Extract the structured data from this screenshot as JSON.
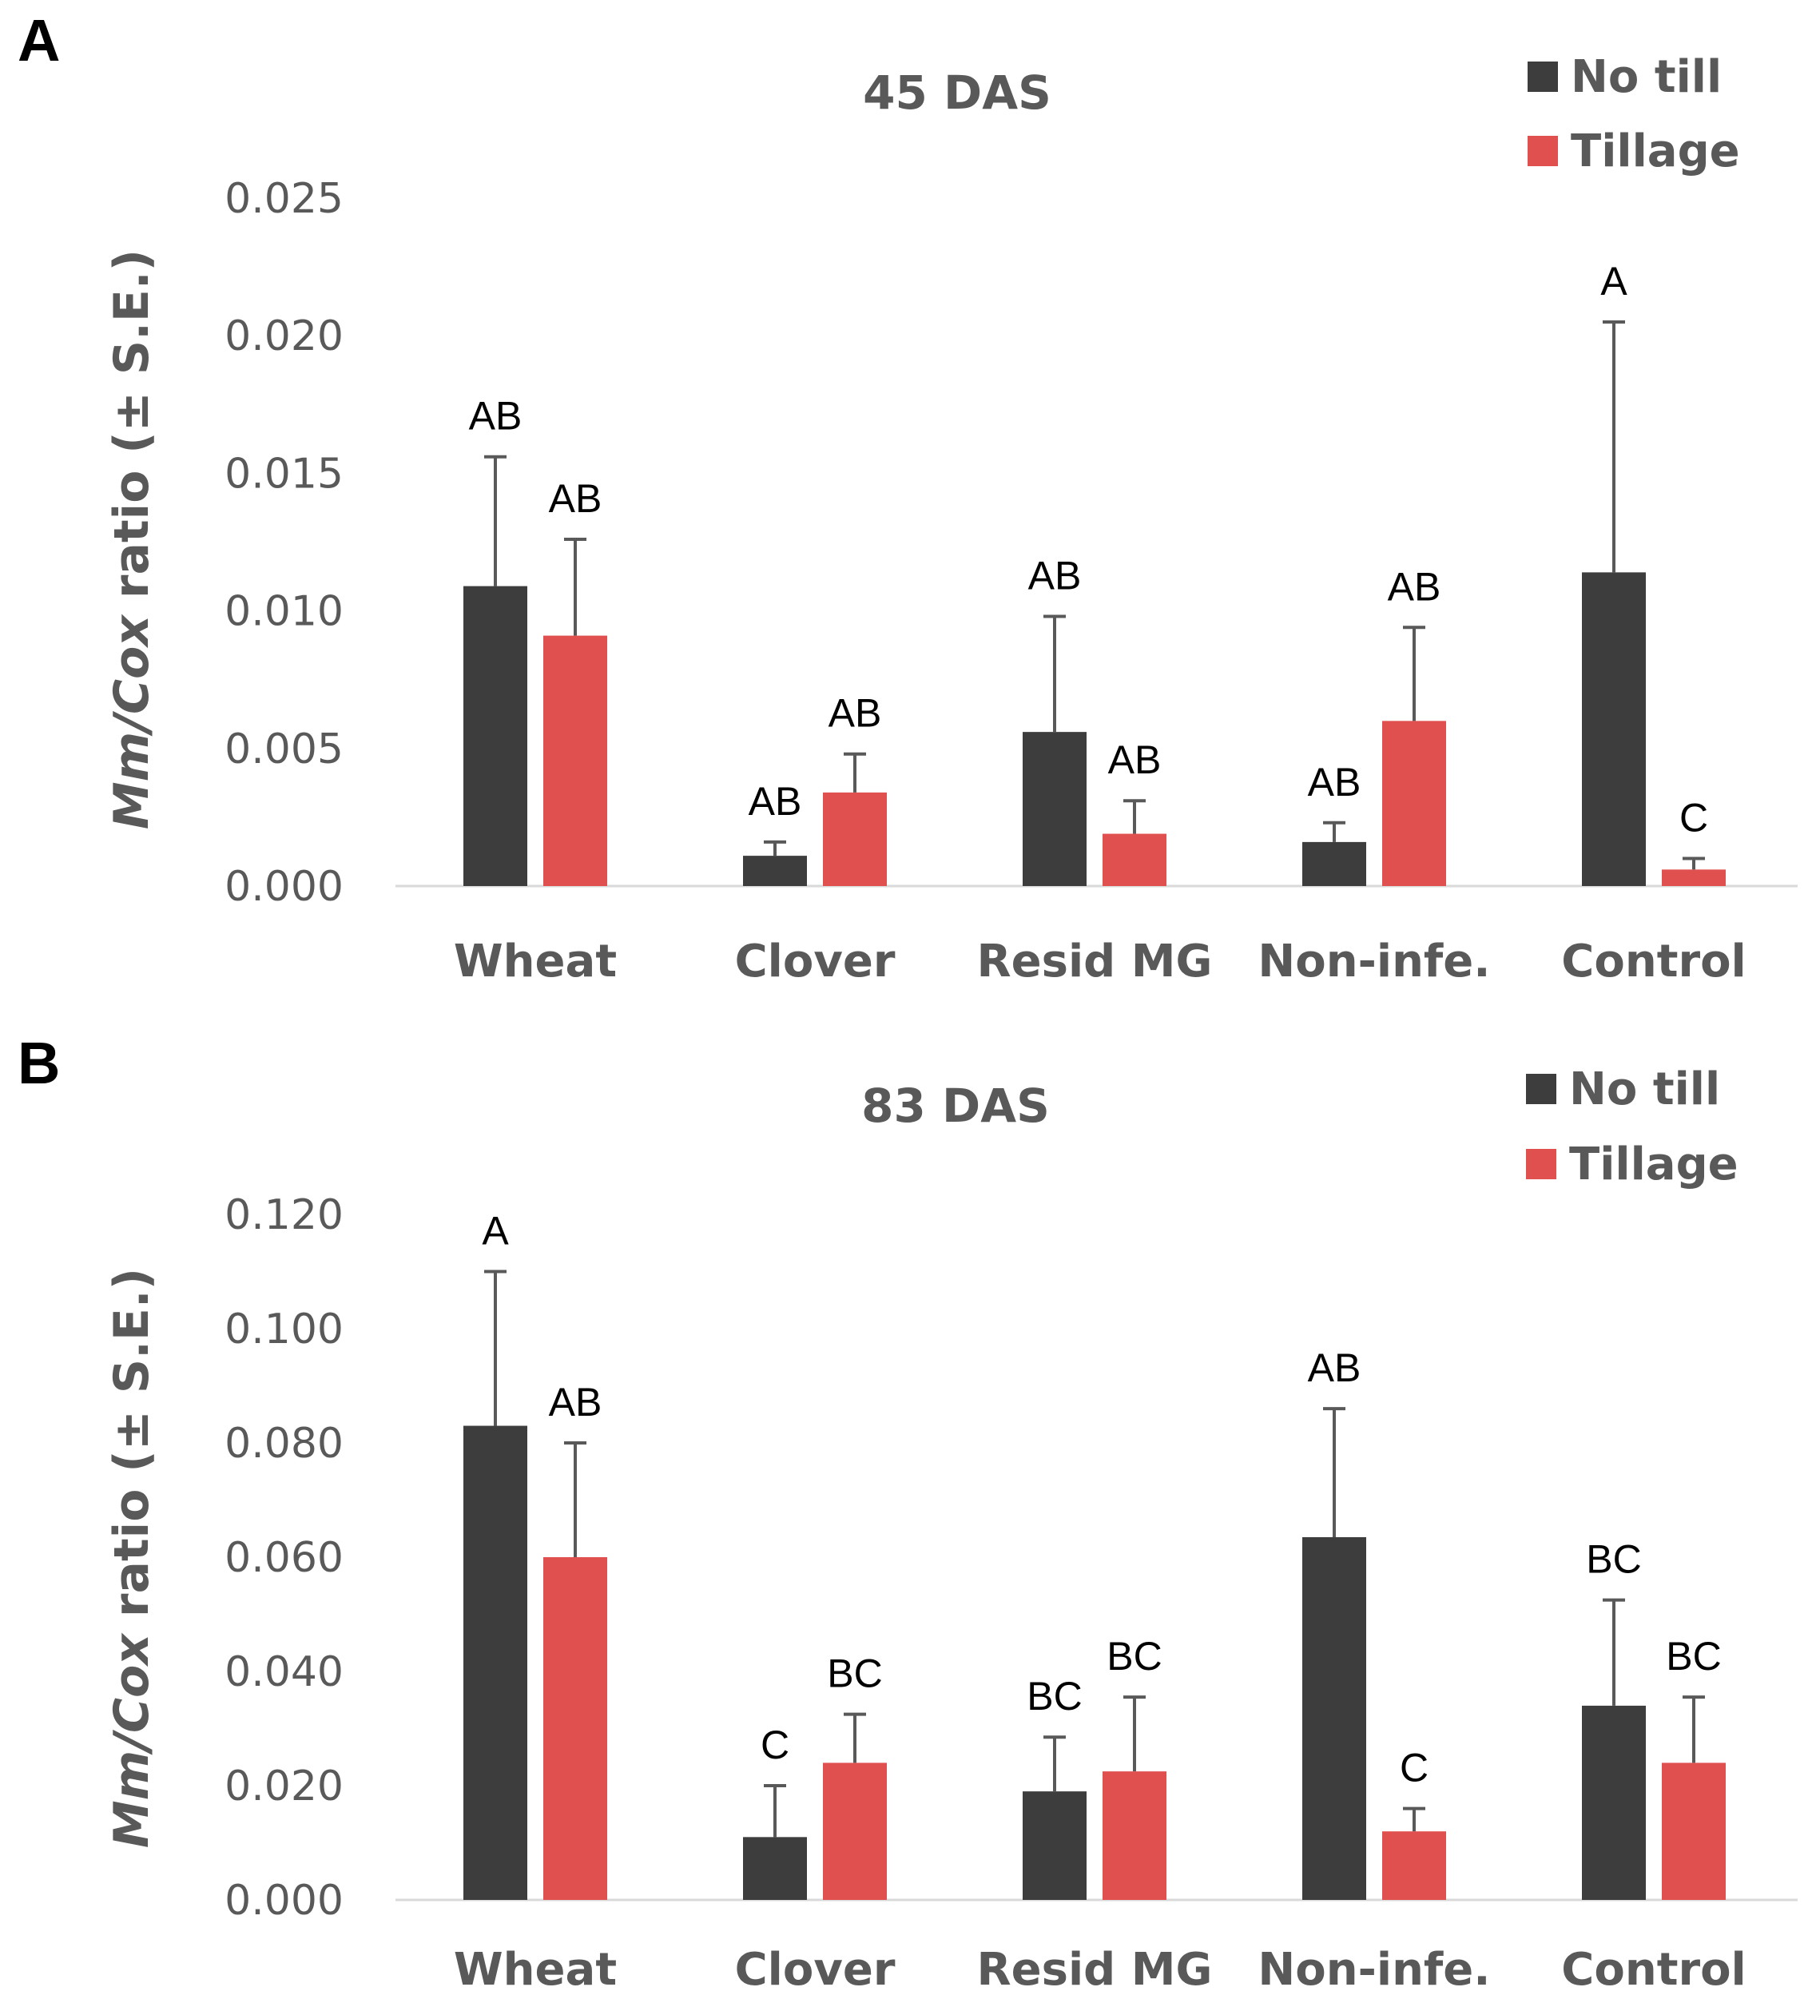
{
  "colors": {
    "no_till": "#3d3d3d",
    "tillage": "#e0504f",
    "text": "#595959",
    "axis": "#d9d9d9",
    "error": "#595959"
  },
  "chart_data": [
    {
      "panel": "A",
      "type": "bar",
      "title": "45 DAS",
      "ylabel_italic": "Mm/Cox",
      "ylabel_rest": " ratio (± S.E.)",
      "ylim": [
        0,
        0.025
      ],
      "ticks": [
        "0.000",
        "0.005",
        "0.010",
        "0.015",
        "0.020",
        "0.025"
      ],
      "categories": [
        "Wheat",
        "Clover",
        "Resid MG",
        "Non-infe.",
        "Control"
      ],
      "legend": [
        "No till",
        "Tillage"
      ],
      "series": [
        {
          "name": "No till",
          "values": [
            0.0109,
            0.0011,
            0.0056,
            0.0016,
            0.0114
          ],
          "errors": [
            0.0047,
            0.0005,
            0.0042,
            0.0007,
            0.0091
          ],
          "letters": [
            "AB",
            "AB",
            "AB",
            "AB",
            "A"
          ]
        },
        {
          "name": "Tillage",
          "values": [
            0.0091,
            0.0034,
            0.0019,
            0.006,
            0.0006
          ],
          "errors": [
            0.0035,
            0.0014,
            0.0012,
            0.0034,
            0.0004
          ],
          "letters": [
            "AB",
            "AB",
            "AB",
            "AB",
            "C"
          ]
        }
      ]
    },
    {
      "panel": "B",
      "type": "bar",
      "title": "83 DAS",
      "ylabel_italic": "Mm/Cox",
      "ylabel_rest": " ratio (± S.E.)",
      "ylim": [
        0,
        0.12
      ],
      "ticks": [
        "0.000",
        "0.020",
        "0.040",
        "0.060",
        "0.080",
        "0.100",
        "0.120"
      ],
      "categories": [
        "Wheat",
        "Clover",
        "Resid MG",
        "Non-infe.",
        "Control"
      ],
      "legend": [
        "No till",
        "Tillage"
      ],
      "series": [
        {
          "name": "No till",
          "values": [
            0.083,
            0.011,
            0.019,
            0.0635,
            0.034
          ],
          "errors": [
            0.027,
            0.009,
            0.0095,
            0.0225,
            0.0185
          ],
          "letters": [
            "A",
            "C",
            "BC",
            "AB",
            "BC"
          ]
        },
        {
          "name": "Tillage",
          "values": [
            0.06,
            0.024,
            0.0225,
            0.012,
            0.024
          ],
          "errors": [
            0.02,
            0.0085,
            0.013,
            0.004,
            0.0115
          ],
          "letters": [
            "AB",
            "BC",
            "BC",
            "C",
            "BC"
          ]
        }
      ]
    }
  ]
}
